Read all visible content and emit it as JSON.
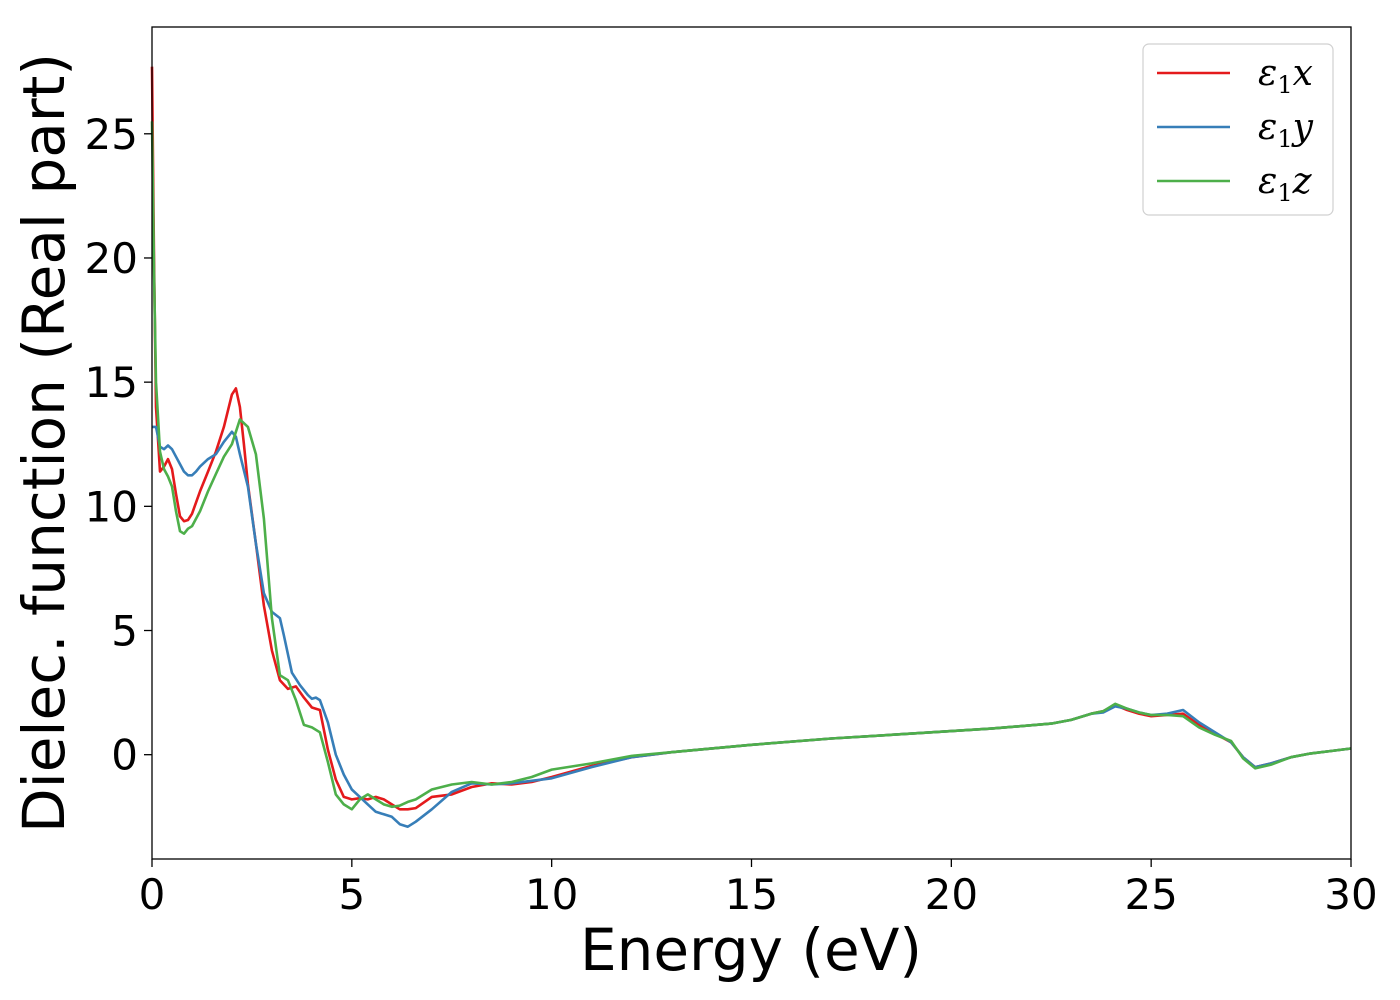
{
  "chart_data": {
    "type": "line",
    "title": "",
    "xlabel": "Energy (eV)",
    "ylabel": "Dielec. function (Real part)",
    "xlim": [
      0,
      30
    ],
    "ylim": [
      -4.2,
      29.3
    ],
    "xticks": [
      0,
      5,
      10,
      15,
      20,
      25,
      30
    ],
    "yticks": [
      0,
      5,
      10,
      15,
      20,
      25
    ],
    "grid": false,
    "legend_position": "top-right",
    "series": [
      {
        "name": "ε₁x",
        "legend_main": "ε",
        "legend_sub": "1",
        "legend_tail": "x",
        "color": "#e41a1c",
        "x": [
          0,
          0.05,
          0.1,
          0.2,
          0.3,
          0.4,
          0.5,
          0.6,
          0.7,
          0.8,
          0.9,
          1.0,
          1.2,
          1.4,
          1.6,
          1.8,
          2.0,
          2.1,
          2.2,
          2.3,
          2.4,
          2.6,
          2.8,
          3.0,
          3.2,
          3.4,
          3.6,
          3.8,
          4.0,
          4.2,
          4.4,
          4.6,
          4.8,
          5.0,
          5.2,
          5.4,
          5.6,
          5.8,
          6.0,
          6.2,
          6.4,
          6.6,
          7.0,
          7.5,
          8.0,
          8.5,
          9.0,
          9.5,
          10.0,
          11.0,
          12.0,
          13.0,
          15.0,
          17.0,
          19.0,
          21.0,
          22.5,
          23.0,
          23.5,
          23.8,
          24.1,
          24.4,
          24.7,
          25.0,
          25.4,
          25.8,
          26.2,
          26.6,
          27.0,
          27.3,
          27.6,
          28.0,
          28.5,
          29.0,
          29.5,
          30.0
        ],
        "values": [
          27.7,
          20.0,
          14.0,
          11.4,
          11.6,
          11.9,
          11.5,
          10.5,
          9.6,
          9.4,
          9.45,
          9.7,
          10.6,
          11.4,
          12.2,
          13.2,
          14.5,
          14.75,
          14.0,
          12.5,
          10.9,
          8.5,
          6.0,
          4.2,
          3.0,
          2.65,
          2.75,
          2.3,
          1.9,
          1.8,
          0.2,
          -1.0,
          -1.7,
          -1.8,
          -1.75,
          -1.8,
          -1.7,
          -1.8,
          -2.0,
          -2.2,
          -2.2,
          -2.15,
          -1.7,
          -1.6,
          -1.3,
          -1.15,
          -1.2,
          -1.1,
          -0.9,
          -0.45,
          -0.1,
          0.1,
          0.4,
          0.65,
          0.85,
          1.05,
          1.25,
          1.4,
          1.65,
          1.75,
          2.0,
          1.8,
          1.65,
          1.55,
          1.6,
          1.65,
          1.2,
          0.85,
          0.5,
          -0.1,
          -0.5,
          -0.35,
          -0.1,
          0.05,
          0.15,
          0.25
        ]
      },
      {
        "name": "ε₁y",
        "legend_main": "ε",
        "legend_sub": "1",
        "legend_tail": "y",
        "color": "#377eb8",
        "x": [
          0,
          0.1,
          0.2,
          0.3,
          0.4,
          0.5,
          0.6,
          0.7,
          0.8,
          0.9,
          1.0,
          1.1,
          1.2,
          1.4,
          1.6,
          1.8,
          2.0,
          2.1,
          2.2,
          2.4,
          2.6,
          2.8,
          3.0,
          3.2,
          3.3,
          3.5,
          3.7,
          3.9,
          4.0,
          4.1,
          4.2,
          4.4,
          4.6,
          4.8,
          5.0,
          5.2,
          5.4,
          5.6,
          5.8,
          6.0,
          6.2,
          6.4,
          6.6,
          7.0,
          7.5,
          8.0,
          8.5,
          9.0,
          9.5,
          10.0,
          11.0,
          12.0,
          13.0,
          15.0,
          17.0,
          19.0,
          21.0,
          22.5,
          23.0,
          23.5,
          23.8,
          24.1,
          24.4,
          24.7,
          25.0,
          25.4,
          25.8,
          26.2,
          26.6,
          27.0,
          27.3,
          27.6,
          28.0,
          28.5,
          29.0,
          29.5,
          30.0
        ],
        "values": [
          13.2,
          13.2,
          12.4,
          12.3,
          12.45,
          12.3,
          12.0,
          11.7,
          11.4,
          11.25,
          11.25,
          11.4,
          11.6,
          11.9,
          12.1,
          12.6,
          13.0,
          12.8,
          12.1,
          10.8,
          8.5,
          6.5,
          5.75,
          5.5,
          4.8,
          3.3,
          2.8,
          2.4,
          2.25,
          2.3,
          2.2,
          1.3,
          0.0,
          -0.8,
          -1.4,
          -1.7,
          -2.0,
          -2.3,
          -2.4,
          -2.5,
          -2.8,
          -2.9,
          -2.7,
          -2.2,
          -1.5,
          -1.15,
          -1.2,
          -1.15,
          -1.05,
          -0.95,
          -0.5,
          -0.1,
          0.1,
          0.4,
          0.65,
          0.85,
          1.05,
          1.25,
          1.4,
          1.65,
          1.7,
          1.95,
          1.85,
          1.7,
          1.6,
          1.65,
          1.8,
          1.3,
          0.9,
          0.5,
          -0.1,
          -0.5,
          -0.35,
          -0.1,
          0.05,
          0.15,
          0.25
        ]
      },
      {
        "name": "ε₁z",
        "legend_main": "ε",
        "legend_sub": "1",
        "legend_tail": "z",
        "color": "#4daf4a",
        "x": [
          0,
          0.05,
          0.1,
          0.2,
          0.3,
          0.4,
          0.5,
          0.6,
          0.7,
          0.8,
          0.9,
          1.0,
          1.2,
          1.4,
          1.6,
          1.8,
          2.0,
          2.1,
          2.2,
          2.4,
          2.6,
          2.8,
          3.0,
          3.2,
          3.4,
          3.6,
          3.8,
          4.0,
          4.2,
          4.4,
          4.6,
          4.8,
          5.0,
          5.2,
          5.4,
          5.6,
          5.8,
          6.0,
          6.2,
          6.4,
          6.6,
          7.0,
          7.5,
          8.0,
          8.5,
          9.0,
          9.5,
          10.0,
          11.0,
          12.0,
          13.0,
          15.0,
          17.0,
          19.0,
          21.0,
          22.5,
          23.0,
          23.5,
          23.8,
          24.1,
          24.4,
          24.7,
          25.0,
          25.4,
          25.8,
          26.2,
          26.6,
          27.0,
          27.3,
          27.6,
          28.0,
          28.5,
          29.0,
          29.5,
          30.0
        ],
        "values": [
          25.5,
          19.5,
          15.0,
          12.2,
          11.5,
          11.2,
          10.8,
          9.8,
          9.0,
          8.9,
          9.1,
          9.2,
          9.8,
          10.6,
          11.3,
          12.0,
          12.5,
          13.0,
          13.5,
          13.2,
          12.1,
          9.5,
          5.5,
          3.2,
          3.0,
          2.2,
          1.2,
          1.1,
          0.9,
          -0.3,
          -1.6,
          -2.0,
          -2.2,
          -1.8,
          -1.6,
          -1.8,
          -2.0,
          -2.1,
          -2.05,
          -1.9,
          -1.8,
          -1.4,
          -1.2,
          -1.1,
          -1.2,
          -1.1,
          -0.9,
          -0.6,
          -0.35,
          -0.05,
          0.1,
          0.4,
          0.65,
          0.85,
          1.05,
          1.25,
          1.4,
          1.65,
          1.75,
          2.05,
          1.85,
          1.7,
          1.6,
          1.6,
          1.55,
          1.1,
          0.8,
          0.55,
          -0.15,
          -0.55,
          -0.4,
          -0.1,
          0.05,
          0.15,
          0.25
        ]
      }
    ]
  }
}
